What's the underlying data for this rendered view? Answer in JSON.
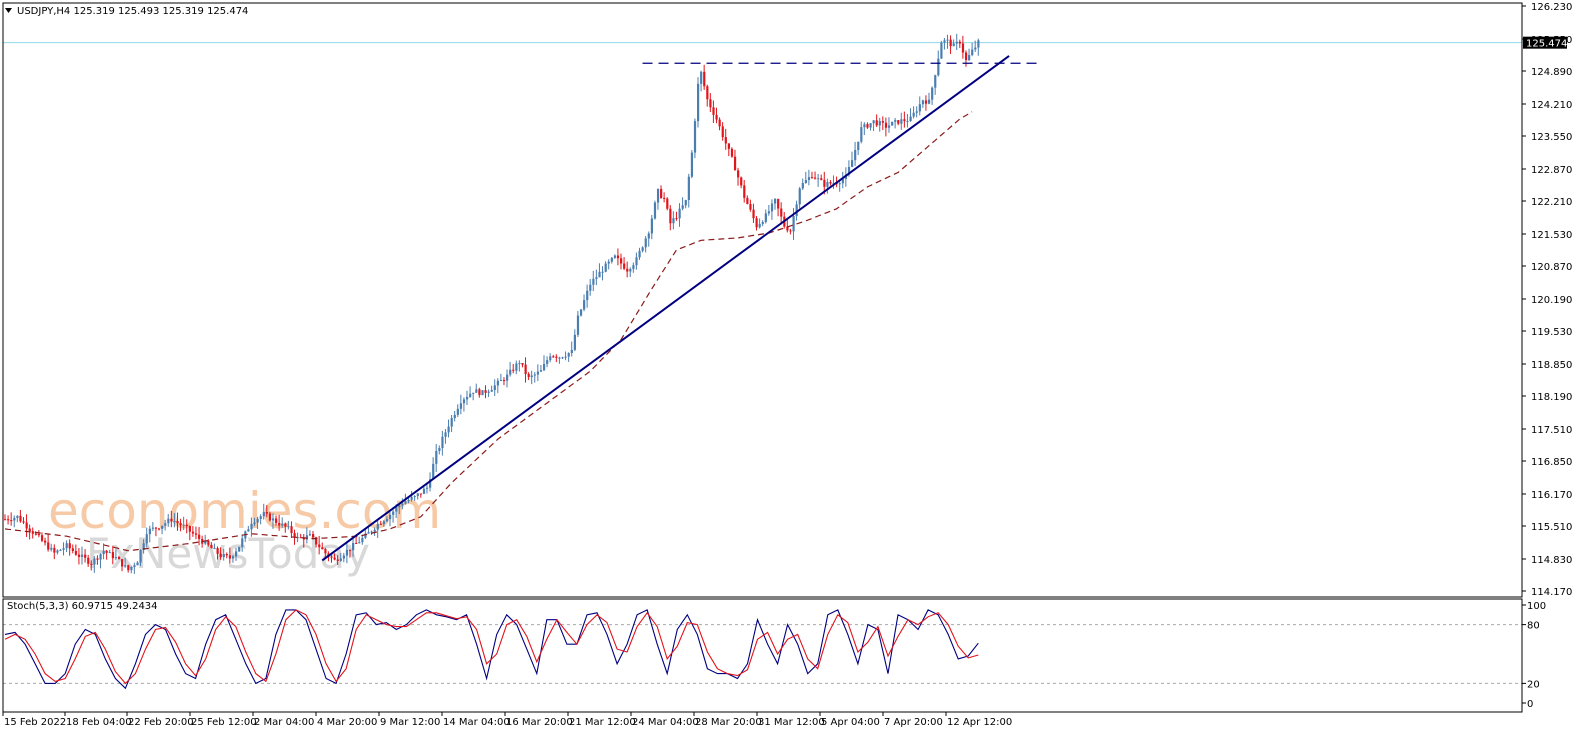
{
  "header": {
    "symbol_line": "USDJPY,H4  125.319 125.493 125.319 125.474",
    "stoch_line": "Stoch(5,3,3) 60.9715 49.2434"
  },
  "watermark": {
    "line1": "economies.com",
    "line2": "FxNewsToday"
  },
  "colors": {
    "bull": "#4a7eb0",
    "bear": "#e0141b",
    "trendline": "#000080",
    "resistance": "#000080",
    "ma": "#8b1a1a",
    "stoch_main": "#000080",
    "stoch_signal": "#e0141b",
    "current_price_line": "#8fd8e8",
    "price_label_bg": "#000000",
    "watermark_orange": "#f5b98a",
    "watermark_gray": "#c8c8c8"
  },
  "chart_data": [
    {
      "type": "candlestick",
      "title": "USDJPY,H4",
      "ohlc_header": {
        "open": 125.319,
        "high": 125.493,
        "low": 125.319,
        "close": 125.474
      },
      "current_price": "125.474",
      "y_ticks": [
        "126.230",
        "125.550",
        "124.890",
        "124.210",
        "123.550",
        "122.870",
        "122.210",
        "121.530",
        "120.870",
        "120.190",
        "119.530",
        "118.850",
        "118.190",
        "117.510",
        "116.850",
        "116.170",
        "115.510",
        "114.830",
        "114.170"
      ],
      "ylim": [
        114.17,
        126.23
      ],
      "x_ticks": [
        "15 Feb 2022",
        "18 Feb 04:00",
        "22 Feb 20:00",
        "25 Feb 12:00",
        "2 Mar 04:00",
        "4 Mar 20:00",
        "9 Mar 12:00",
        "14 Mar 04:00",
        "16 Mar 20:00",
        "21 Mar 12:00",
        "24 Mar 04:00",
        "28 Mar 20:00",
        "31 Mar 12:00",
        "5 Apr 04:00",
        "7 Apr 20:00",
        "12 Apr 12:00"
      ],
      "close_path": [
        [
          0,
          115.65
        ],
        [
          4,
          115.7
        ],
        [
          8,
          115.45
        ],
        [
          12,
          115.2
        ],
        [
          16,
          114.95
        ],
        [
          20,
          115.1
        ],
        [
          24,
          114.9
        ],
        [
          28,
          114.75
        ],
        [
          32,
          115.0
        ],
        [
          36,
          114.85
        ],
        [
          40,
          114.6
        ],
        [
          43,
          114.8
        ],
        [
          46,
          115.4
        ],
        [
          50,
          115.5
        ],
        [
          54,
          115.65
        ],
        [
          58,
          115.5
        ],
        [
          62,
          115.3
        ],
        [
          66,
          115.1
        ],
        [
          70,
          114.9
        ],
        [
          73,
          114.85
        ],
        [
          76,
          115.1
        ],
        [
          80,
          115.6
        ],
        [
          84,
          115.75
        ],
        [
          88,
          115.6
        ],
        [
          92,
          115.45
        ],
        [
          95,
          115.25
        ],
        [
          99,
          115.3
        ],
        [
          104,
          114.95
        ],
        [
          107,
          114.8
        ],
        [
          110,
          114.95
        ],
        [
          113,
          115.1
        ],
        [
          117,
          115.3
        ],
        [
          121,
          115.55
        ],
        [
          125,
          115.75
        ],
        [
          129,
          116.0
        ],
        [
          133,
          116.1
        ],
        [
          137,
          116.3
        ],
        [
          140,
          117.0
        ],
        [
          144,
          117.6
        ],
        [
          148,
          118.1
        ],
        [
          152,
          118.3
        ],
        [
          155,
          118.25
        ],
        [
          159,
          118.4
        ],
        [
          163,
          118.6
        ],
        [
          167,
          118.9
        ],
        [
          170,
          118.55
        ],
        [
          174,
          118.7
        ],
        [
          177,
          119.05
        ],
        [
          180,
          119.0
        ],
        [
          184,
          119.1
        ],
        [
          186,
          119.8
        ],
        [
          190,
          120.5
        ],
        [
          194,
          120.8
        ],
        [
          198,
          121.05
        ],
        [
          202,
          120.8
        ],
        [
          205,
          121.0
        ],
        [
          209,
          121.6
        ],
        [
          212,
          122.4
        ],
        [
          214,
          122.25
        ],
        [
          216,
          121.75
        ],
        [
          218,
          121.9
        ],
        [
          221,
          122.2
        ],
        [
          223,
          123.2
        ],
        [
          225,
          124.6
        ],
        [
          226,
          124.85
        ],
        [
          228,
          124.3
        ],
        [
          231,
          123.9
        ],
        [
          234,
          123.4
        ],
        [
          237,
          122.9
        ],
        [
          240,
          122.3
        ],
        [
          244,
          121.7
        ],
        [
          247,
          121.9
        ],
        [
          250,
          122.2
        ],
        [
          253,
          121.7
        ],
        [
          255,
          121.6
        ],
        [
          258,
          122.5
        ],
        [
          262,
          122.75
        ],
        [
          266,
          122.55
        ],
        [
          270,
          122.6
        ],
        [
          273,
          122.7
        ],
        [
          275,
          123.05
        ],
        [
          278,
          123.7
        ],
        [
          282,
          123.85
        ],
        [
          286,
          123.75
        ],
        [
          290,
          123.85
        ],
        [
          294,
          123.9
        ],
        [
          298,
          124.3
        ],
        [
          300,
          124.25
        ],
        [
          302,
          124.85
        ],
        [
          304,
          125.5
        ],
        [
          306,
          125.5
        ],
        [
          308,
          125.4
        ],
        [
          310,
          125.5
        ],
        [
          312,
          125.1
        ],
        [
          314,
          125.3
        ],
        [
          316,
          125.474
        ]
      ],
      "moving_average": [
        [
          0,
          115.45
        ],
        [
          20,
          115.3
        ],
        [
          40,
          115.0
        ],
        [
          60,
          115.15
        ],
        [
          80,
          115.35
        ],
        [
          100,
          115.25
        ],
        [
          115,
          115.3
        ],
        [
          125,
          115.45
        ],
        [
          135,
          115.7
        ],
        [
          145,
          116.4
        ],
        [
          160,
          117.3
        ],
        [
          175,
          118.0
        ],
        [
          190,
          118.7
        ],
        [
          200,
          119.35
        ],
        [
          210,
          120.4
        ],
        [
          218,
          121.2
        ],
        [
          226,
          121.4
        ],
        [
          238,
          121.45
        ],
        [
          248,
          121.55
        ],
        [
          260,
          121.8
        ],
        [
          270,
          122.05
        ],
        [
          280,
          122.5
        ],
        [
          290,
          122.8
        ],
        [
          300,
          123.35
        ],
        [
          310,
          123.9
        ],
        [
          314,
          124.05
        ]
      ],
      "trendline": {
        "from": [
          103,
          114.8
        ],
        "to": [
          326,
          125.2
        ]
      },
      "resistance": {
        "price": 125.05,
        "from_bar": 207,
        "to_bar": 336
      }
    },
    {
      "type": "line",
      "title": "Stoch(5,3,3)",
      "main_value": 60.9715,
      "signal_value": 49.2434,
      "ylim": [
        0,
        100
      ],
      "levels": [
        80,
        20
      ],
      "y_ticks": [
        "100",
        "80",
        "20",
        "0"
      ],
      "series": [
        {
          "name": "main",
          "values": [
            70,
            72,
            60,
            40,
            20,
            20,
            30,
            60,
            75,
            70,
            45,
            25,
            15,
            40,
            70,
            80,
            75,
            50,
            30,
            25,
            60,
            85,
            90,
            65,
            40,
            20,
            25,
            70,
            95,
            95,
            85,
            55,
            25,
            20,
            50,
            90,
            92,
            80,
            82,
            75,
            80,
            90,
            95,
            90,
            88,
            85,
            90,
            60,
            25,
            70,
            90,
            80,
            55,
            30,
            85,
            85,
            60,
            60,
            90,
            92,
            70,
            40,
            60,
            90,
            95,
            60,
            30,
            75,
            90,
            70,
            35,
            30,
            30,
            25,
            40,
            85,
            60,
            40,
            80,
            60,
            30,
            40,
            90,
            95,
            70,
            40,
            80,
            75,
            30,
            90,
            85,
            75,
            95,
            90,
            70,
            45,
            48,
            61
          ]
        },
        {
          "name": "signal",
          "values": [
            65,
            70,
            65,
            50,
            30,
            22,
            25,
            45,
            68,
            72,
            55,
            32,
            20,
            30,
            55,
            75,
            77,
            62,
            40,
            28,
            45,
            75,
            88,
            78,
            52,
            30,
            22,
            50,
            85,
            95,
            90,
            70,
            40,
            22,
            35,
            75,
            90,
            85,
            80,
            78,
            78,
            85,
            92,
            92,
            89,
            86,
            88,
            75,
            40,
            50,
            80,
            85,
            68,
            42,
            65,
            85,
            72,
            60,
            80,
            90,
            82,
            55,
            52,
            78,
            92,
            78,
            45,
            58,
            82,
            80,
            52,
            35,
            30,
            28,
            34,
            65,
            72,
            50,
            65,
            70,
            45,
            35,
            70,
            90,
            82,
            52,
            62,
            78,
            48,
            68,
            85,
            80,
            88,
            92,
            80,
            58,
            46,
            49
          ]
        }
      ]
    }
  ]
}
